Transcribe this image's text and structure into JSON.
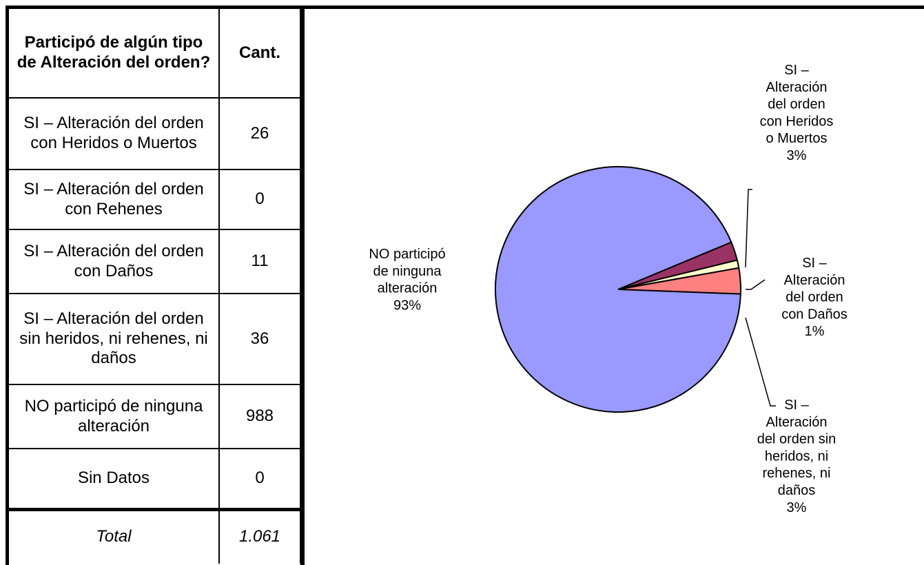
{
  "table": {
    "header_question": "Participó de algún tipo de Alteración del orden?",
    "header_count": "Cant.",
    "rows": [
      {
        "label": "SI – Alteración del orden con Heridos o Muertos",
        "count": "26"
      },
      {
        "label": "SI – Alteración del orden con Rehenes",
        "count": "0"
      },
      {
        "label": "SI – Alteración del orden con Daños",
        "count": "11"
      },
      {
        "label": "SI – Alteración del orden sin heridos, ni rehenes, ni daños",
        "count": "36"
      },
      {
        "label": "NO participó de ninguna alteración",
        "count": "988"
      },
      {
        "label": "Sin Datos",
        "count": "0"
      }
    ],
    "total_label": "Total",
    "total_value": "1.061"
  },
  "chart_data": {
    "type": "pie",
    "title": "",
    "slices": [
      {
        "name": "SI – Alteración del orden con Heridos o Muertos",
        "value": 26,
        "percent": "3%",
        "color": "#993366"
      },
      {
        "name": "SI – Alteración del orden con Daños",
        "value": 11,
        "percent": "1%",
        "color": "#FFFFCC"
      },
      {
        "name": "SI – Alteración del orden sin heridos, ni rehenes, ni daños",
        "value": 36,
        "percent": "3%",
        "color": "#FF8080"
      },
      {
        "name": "NO participó de ninguna alteración",
        "value": 988,
        "percent": "93%",
        "color": "#9999FF"
      }
    ],
    "labels": [
      {
        "lines": [
          "SI –",
          "Alteración",
          "del orden",
          "con Heridos",
          "o Muertos",
          "3%"
        ]
      },
      {
        "lines": [
          "SI –",
          "Alteración",
          "del orden",
          "con Daños",
          "1%"
        ]
      },
      {
        "lines": [
          "SI –",
          "Alteración",
          "del orden sin",
          "heridos, ni",
          "rehenes, ni",
          "daños",
          "3%"
        ]
      },
      {
        "lines": [
          "NO participó",
          "de ninguna",
          "alteración",
          "93%"
        ]
      }
    ]
  }
}
